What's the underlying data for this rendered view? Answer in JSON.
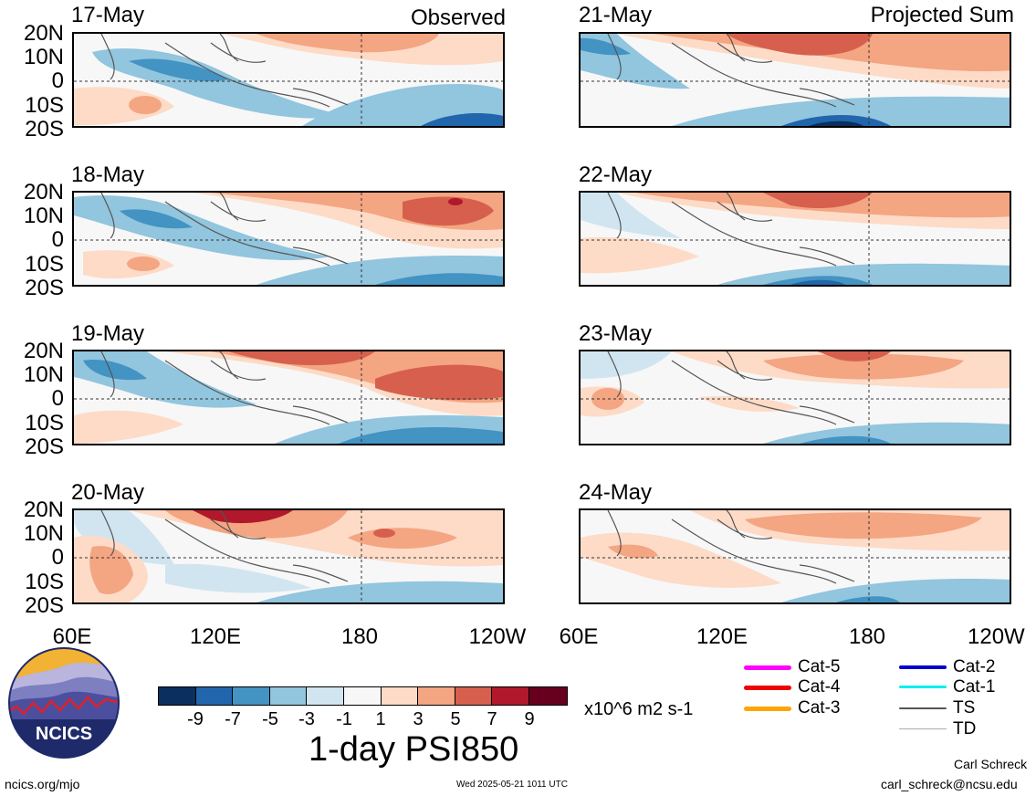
{
  "left_column": {
    "tag": "Observed",
    "panels": [
      {
        "date": "17-May"
      },
      {
        "date": "18-May"
      },
      {
        "date": "19-May"
      },
      {
        "date": "20-May"
      }
    ]
  },
  "right_column": {
    "tag": "Projected Sum",
    "panels": [
      {
        "date": "21-May"
      },
      {
        "date": "22-May"
      },
      {
        "date": "23-May"
      },
      {
        "date": "24-May"
      }
    ]
  },
  "lat_labels": [
    "20N",
    "10N",
    "0",
    "10S",
    "20S"
  ],
  "lon_labels": [
    "60E",
    "120E",
    "180",
    "120W"
  ],
  "colorbar": {
    "colors": [
      "#0b2f5e",
      "#2166ac",
      "#4393c3",
      "#92c5de",
      "#d1e5f0",
      "#f7f7f7",
      "#fddbc7",
      "#f4a582",
      "#d6604d",
      "#b2182b",
      "#67001f"
    ],
    "ticks": [
      "-9",
      "-7",
      "-5",
      "-3",
      "-1",
      "1",
      "3",
      "5",
      "7",
      "9"
    ],
    "units": "x10^6 m2 s-1",
    "title": "1-day PSI850"
  },
  "legend": [
    {
      "label": "Cat-5",
      "color": "#ff00ff"
    },
    {
      "label": "Cat-4",
      "color": "#ee0000"
    },
    {
      "label": "Cat-3",
      "color": "#ffa500"
    },
    {
      "label": "Cat-2",
      "color": "#0000cd"
    },
    {
      "label": "Cat-1",
      "color": "#00eeee"
    },
    {
      "label": "TS",
      "color": "#555555"
    },
    {
      "label": "TD",
      "color": "#aaaaaa"
    }
  ],
  "logo": {
    "text": "NCICS"
  },
  "footer": {
    "site": "ncics.org/mjo",
    "timestamp": "Wed 2025-05-21 1011 UTC",
    "author": "Carl Schreck",
    "email": "carl_schreck@ncsu.edu"
  }
}
